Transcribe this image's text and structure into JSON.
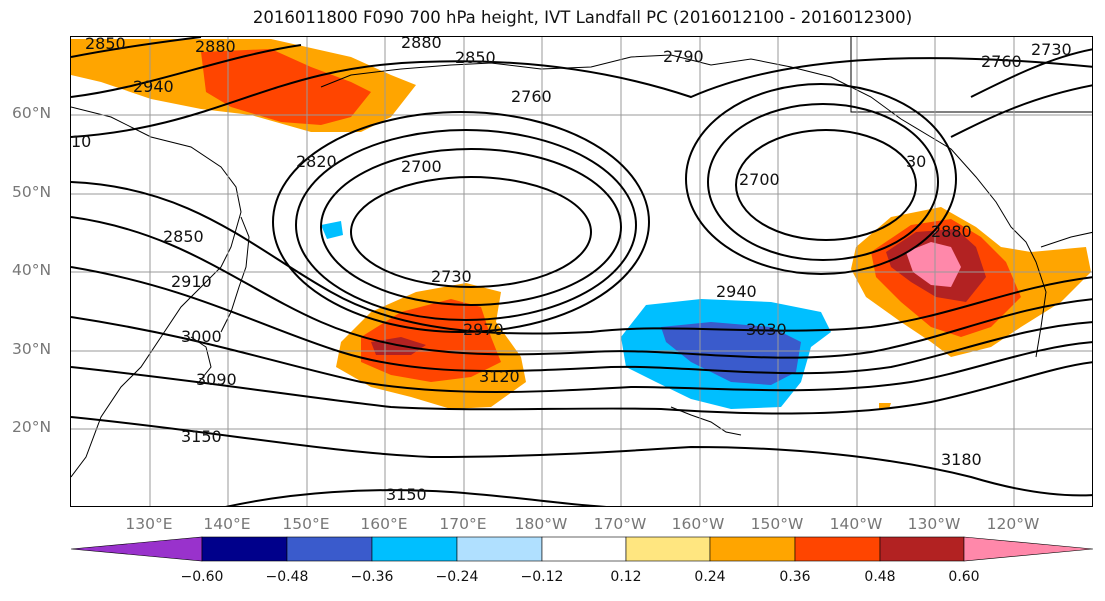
{
  "title": "2016011800 F090 700 hPa height, IVT Landfall PC (2016012100 - 2016012300)",
  "lat_labels": [
    "60°N",
    "50°N",
    "40°N",
    "30°N",
    "20°N"
  ],
  "lon_labels": [
    "130°E",
    "140°E",
    "150°E",
    "160°E",
    "170°E",
    "180°W",
    "170°W",
    "160°W",
    "150°W",
    "140°W",
    "130°W",
    "120°W"
  ],
  "contour_labels": [
    "2850",
    "2880",
    "2880",
    "2850",
    "2790",
    "2730",
    "2760",
    "2940",
    "2760",
    "10",
    "2820",
    "2700",
    "2700",
    "30",
    "2880",
    "2850",
    "2910",
    "2730",
    "2940",
    "3000",
    "2970",
    "3030",
    "3120",
    "3090",
    "3150",
    "3180",
    "3150"
  ],
  "colorbar": {
    "ticks": [
      "−0.60",
      "−0.48",
      "−0.36",
      "−0.24",
      "−0.12",
      "0.12",
      "0.24",
      "0.36",
      "0.48",
      "0.60"
    ],
    "colors": [
      "#9932CC",
      "#00008B",
      "#3A5BCC",
      "#00BFFF",
      "#B0E0FF",
      "#FFFFFF",
      "#FFE680",
      "#FFA500",
      "#FF4500",
      "#B22222",
      "#FF88AA",
      "#FF88AA"
    ]
  },
  "colors": {
    "land_outline": "#000000",
    "grid": "#999999",
    "contour": "#000000"
  }
}
